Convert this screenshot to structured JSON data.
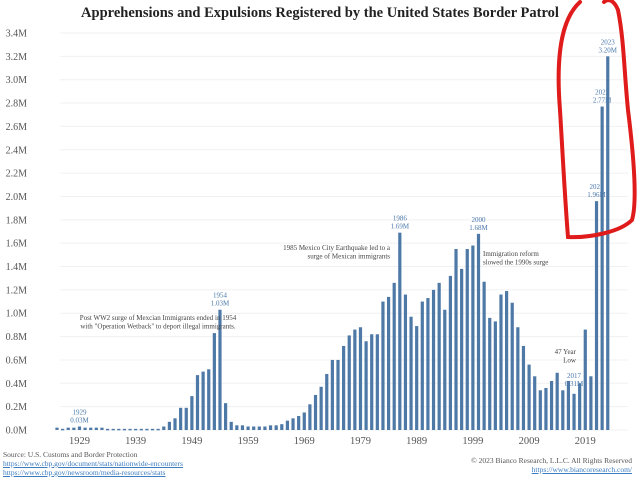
{
  "chart_data": {
    "type": "bar",
    "title": "Apprehensions and Expulsions Registered by the United States Border Patrol",
    "xlabel": "",
    "ylabel": "",
    "ylim": [
      0,
      3.4
    ],
    "y_unit": "M",
    "y_ticks": [
      "0.0M",
      "0.2M",
      "0.4M",
      "0.6M",
      "0.8M",
      "1.0M",
      "1.2M",
      "1.4M",
      "1.6M",
      "1.8M",
      "2.0M",
      "2.2M",
      "2.4M",
      "2.6M",
      "2.8M",
      "3.0M",
      "3.2M",
      "3.4M"
    ],
    "x_ticks": [
      "1929",
      "1939",
      "1949",
      "1959",
      "1969",
      "1979",
      "1989",
      "1999",
      "2009",
      "2019"
    ],
    "grid": true,
    "series": [
      {
        "name": "Apprehensions and Expulsions",
        "color": "#4e79a7",
        "x": [
          1925,
          1926,
          1927,
          1928,
          1929,
          1930,
          1931,
          1932,
          1933,
          1934,
          1935,
          1936,
          1937,
          1938,
          1939,
          1940,
          1941,
          1942,
          1943,
          1944,
          1945,
          1946,
          1947,
          1948,
          1949,
          1950,
          1951,
          1952,
          1953,
          1954,
          1955,
          1956,
          1957,
          1958,
          1959,
          1960,
          1961,
          1962,
          1963,
          1964,
          1965,
          1966,
          1967,
          1968,
          1969,
          1970,
          1971,
          1972,
          1973,
          1974,
          1975,
          1976,
          1977,
          1978,
          1979,
          1980,
          1981,
          1982,
          1983,
          1984,
          1985,
          1986,
          1987,
          1988,
          1989,
          1990,
          1991,
          1992,
          1993,
          1994,
          1995,
          1996,
          1997,
          1998,
          1999,
          2000,
          2001,
          2002,
          2003,
          2004,
          2005,
          2006,
          2007,
          2008,
          2009,
          2010,
          2011,
          2012,
          2013,
          2014,
          2015,
          2016,
          2017,
          2018,
          2019,
          2020,
          2021,
          2022,
          2023
        ],
        "values": [
          0.02,
          0.01,
          0.02,
          0.02,
          0.03,
          0.02,
          0.02,
          0.02,
          0.02,
          0.01,
          0.01,
          0.01,
          0.01,
          0.01,
          0.01,
          0.01,
          0.01,
          0.01,
          0.01,
          0.03,
          0.07,
          0.1,
          0.19,
          0.19,
          0.29,
          0.47,
          0.5,
          0.52,
          0.83,
          1.03,
          0.23,
          0.07,
          0.04,
          0.04,
          0.03,
          0.03,
          0.03,
          0.03,
          0.04,
          0.04,
          0.05,
          0.08,
          0.1,
          0.12,
          0.15,
          0.22,
          0.3,
          0.37,
          0.48,
          0.6,
          0.6,
          0.72,
          0.81,
          0.86,
          0.88,
          0.76,
          0.82,
          0.82,
          1.1,
          1.14,
          1.26,
          1.69,
          1.16,
          0.97,
          0.89,
          1.1,
          1.13,
          1.2,
          1.26,
          1.03,
          1.32,
          1.55,
          1.38,
          1.55,
          1.58,
          1.68,
          1.27,
          0.96,
          0.93,
          1.16,
          1.19,
          1.09,
          0.88,
          0.72,
          0.56,
          0.46,
          0.34,
          0.36,
          0.42,
          0.49,
          0.34,
          0.42,
          0.31,
          0.4,
          0.86,
          0.46,
          1.96,
          2.77,
          3.2
        ]
      }
    ],
    "data_labels": [
      {
        "year": 1929,
        "year_text": "1929",
        "value_text": "0.03M"
      },
      {
        "year": 1954,
        "year_text": "1954",
        "value_text": "1.03M"
      },
      {
        "year": 1986,
        "year_text": "1986",
        "value_text": "1.69M"
      },
      {
        "year": 2000,
        "year_text": "2000",
        "value_text": "1.68M"
      },
      {
        "year": 2017,
        "year_text": "2017",
        "value_text": "0.31M"
      },
      {
        "year": 2021,
        "year_text": "2021",
        "value_text": "1.96M"
      },
      {
        "year": 2022,
        "year_text": "2022",
        "value_text": "2.77M"
      },
      {
        "year": 2023,
        "year_text": "2023",
        "value_text": "3.20M"
      }
    ],
    "annotations": [
      {
        "id": "wetback",
        "lines": [
          "Post WW2 surge of Mexcian Immigrants ended in 1954",
          "with \"Operation Wetback\" to deport illegal immigrants."
        ]
      },
      {
        "id": "earthquake",
        "lines": [
          "1985 Mexico City Earthquake led to a",
          "surge of Mexican immigrants"
        ]
      },
      {
        "id": "reform",
        "lines": [
          "Immigration reform",
          "slowed the 1990s surge"
        ]
      },
      {
        "id": "low",
        "lines": [
          "47 Year",
          "Low"
        ]
      }
    ]
  },
  "footer": {
    "source_label": "Source: U.S. Customs and Border Protection",
    "source_link_1": "https://www.cbp.gov/document/stats/nationwide-encounters",
    "source_link_2": "https://www.cbp.gov/newsroom/media-resources/stats",
    "copyright": "© 2023 Bianco Research, L.L.C. All Rights Reserved",
    "website": "https://www.biancoresearch.com/"
  },
  "highlight": {
    "color": "#e01b1b",
    "description": "hand-drawn red circle around 2021–2023 bars"
  }
}
